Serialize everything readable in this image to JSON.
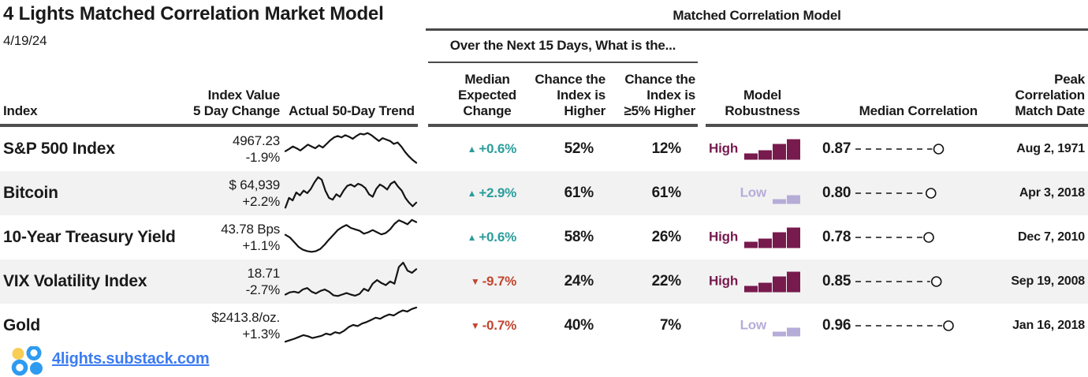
{
  "colors": {
    "up": "#2A9D9C",
    "down": "#C2452F",
    "high": "#771A4E",
    "low": "#B6ACD8",
    "text": "#1A1A1A",
    "row_alt": "#F2F2F2",
    "link": "#3C7BF2",
    "logo_yellow": "#F7CD56",
    "logo_blue": "#2E9BF0"
  },
  "header": {
    "title": "4 Lights Matched Correlation Market Model",
    "date": "4/19/24",
    "right_group_label": "Matched Correlation Model",
    "mid_group_label": "Over the Next 15 Days, What is the..."
  },
  "columns": {
    "index": "Index",
    "index_value": "Index Value\n5 Day Change",
    "trend": "Actual 50-Day Trend",
    "median_expected_change": "Median\nExpected\nChange",
    "chance_higher": "Chance the\nIndex is\nHigher",
    "chance_5_higher": "Chance the\nIndex is\n≥5% Higher",
    "robustness": "Model\nRobustness",
    "median_correlation": "Median Correlation",
    "peak_date": "Peak\nCorrelation\nMatch Date"
  },
  "footer": {
    "link": "4lights.substack.com"
  },
  "chart_data": {
    "type": "table",
    "title": "4 Lights Matched Correlation Market Model",
    "as_of_date": "4/19/24",
    "column_groups": [
      "Over the Next 15 Days, What is the...",
      "Matched Correlation Model"
    ],
    "columns": [
      "Index",
      "Index Value / 5 Day Change",
      "Actual 50-Day Trend",
      "Median Expected Change",
      "Chance the Index is Higher",
      "Chance the Index is ≥5% Higher",
      "Model Robustness",
      "Median Correlation",
      "Peak Correlation Match Date"
    ],
    "rows": [
      {
        "index": "S&P 500 Index",
        "value": "4967.23",
        "change": "-1.9%",
        "direction": "up",
        "median_expected_change": "+0.6%",
        "chance_higher": "52%",
        "chance_5_higher": "12%",
        "robustness": "High",
        "robustness_bars": [
          8,
          12,
          20,
          26
        ],
        "median_correlation": "0.87",
        "peak_date": "Aug 2, 1971",
        "trend_spark": [
          0.42,
          0.48,
          0.55,
          0.5,
          0.44,
          0.52,
          0.6,
          0.55,
          0.5,
          0.58,
          0.52,
          0.62,
          0.72,
          0.8,
          0.84,
          0.8,
          0.86,
          0.82,
          0.76,
          0.84,
          0.9,
          0.88,
          0.92,
          0.86,
          0.78,
          0.7,
          0.78,
          0.74,
          0.7,
          0.62,
          0.66,
          0.55,
          0.4,
          0.28,
          0.18,
          0.1
        ]
      },
      {
        "index": "Bitcoin",
        "value": "$ 64,939",
        "change": "+2.2%",
        "direction": "up",
        "median_expected_change": "+2.9%",
        "chance_higher": "61%",
        "chance_5_higher": "61%",
        "robustness": "Low",
        "robustness_bars": [
          6,
          11
        ],
        "median_correlation": "0.80",
        "peak_date": "Apr 3, 2018",
        "trend_spark": [
          0.08,
          0.35,
          0.28,
          0.5,
          0.42,
          0.55,
          0.48,
          0.6,
          0.78,
          0.92,
          0.85,
          0.55,
          0.35,
          0.3,
          0.45,
          0.38,
          0.55,
          0.68,
          0.72,
          0.66,
          0.74,
          0.7,
          0.62,
          0.45,
          0.38,
          0.6,
          0.72,
          0.66,
          0.58,
          0.74,
          0.8,
          0.66,
          0.55,
          0.35,
          0.22,
          0.12,
          0.22
        ]
      },
      {
        "index": "10-Year Treasury Yield",
        "value": "43.78 Bps",
        "change": "+1.1%",
        "direction": "up",
        "median_expected_change": "+0.6%",
        "chance_higher": "58%",
        "chance_5_higher": "26%",
        "robustness": "High",
        "robustness_bars": [
          8,
          12,
          20,
          26
        ],
        "median_correlation": "0.78",
        "peak_date": "Dec 7, 2010",
        "trend_spark": [
          0.55,
          0.48,
          0.35,
          0.22,
          0.14,
          0.1,
          0.08,
          0.1,
          0.16,
          0.28,
          0.42,
          0.55,
          0.68,
          0.76,
          0.82,
          0.74,
          0.7,
          0.66,
          0.58,
          0.62,
          0.68,
          0.62,
          0.56,
          0.6,
          0.7,
          0.85,
          0.95,
          0.9,
          0.84,
          0.96,
          0.9
        ]
      },
      {
        "index": "VIX Volatility Index",
        "value": "18.71",
        "change": "-2.7%",
        "direction": "down",
        "median_expected_change": "-9.7%",
        "chance_higher": "24%",
        "chance_5_higher": "22%",
        "robustness": "High",
        "robustness_bars": [
          8,
          12,
          20,
          26
        ],
        "median_correlation": "0.85",
        "peak_date": "Sep 19, 2008",
        "trend_spark": [
          0.12,
          0.18,
          0.2,
          0.17,
          0.26,
          0.3,
          0.2,
          0.15,
          0.22,
          0.26,
          0.2,
          0.1,
          0.08,
          0.12,
          0.16,
          0.12,
          0.09,
          0.14,
          0.28,
          0.22,
          0.42,
          0.52,
          0.44,
          0.38,
          0.48,
          0.42,
          0.88,
          1.0,
          0.78,
          0.72,
          0.82
        ]
      },
      {
        "index": "Gold",
        "value": "$2413.8/oz.",
        "change": "+1.3%",
        "direction": "down",
        "median_expected_change": "-0.7%",
        "chance_higher": "40%",
        "chance_5_higher": "7%",
        "robustness": "Low",
        "robustness_bars": [
          6,
          11
        ],
        "median_correlation": "0.96",
        "peak_date": "Jan 16, 2018",
        "trend_spark": [
          0.04,
          0.08,
          0.12,
          0.17,
          0.22,
          0.19,
          0.14,
          0.17,
          0.2,
          0.26,
          0.23,
          0.3,
          0.27,
          0.34,
          0.44,
          0.5,
          0.47,
          0.54,
          0.58,
          0.64,
          0.7,
          0.67,
          0.74,
          0.79,
          0.76,
          0.84,
          0.9,
          0.87,
          0.94,
          0.98
        ]
      }
    ]
  }
}
